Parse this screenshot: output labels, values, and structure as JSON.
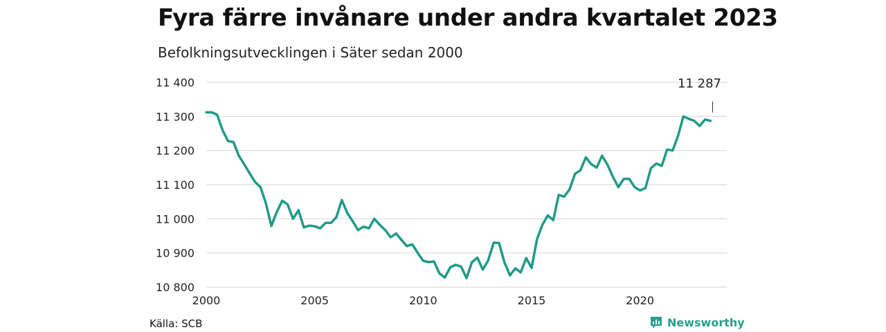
{
  "header": {
    "title": "Fyra färre invånare under andra kvartalet 2023",
    "subtitle": "Befolkningsutvecklingen i Säter sedan 2000"
  },
  "footer": {
    "source": "Källa: SCB",
    "brand": "Newsworthy",
    "brand_icon": "bar-chart-icon",
    "brand_color": "#2a9d8f"
  },
  "chart_data": {
    "type": "line",
    "title": "Fyra färre invånare under andra kvartalet 2023",
    "subtitle": "Befolkningsutvecklingen i Säter sedan 2000",
    "xlabel": "",
    "ylabel": "",
    "xlim": [
      2000,
      2024
    ],
    "ylim": [
      10800,
      11400
    ],
    "grid": true,
    "line_color": "#1f9a88",
    "x_ticks": [
      {
        "value": 2000,
        "label": "2000"
      },
      {
        "value": 2005,
        "label": "2005"
      },
      {
        "value": 2010,
        "label": "2010"
      },
      {
        "value": 2015,
        "label": "2015"
      },
      {
        "value": 2020,
        "label": "2020"
      }
    ],
    "y_ticks": [
      {
        "value": 10800,
        "label": "10 800"
      },
      {
        "value": 10900,
        "label": "10 900"
      },
      {
        "value": 11000,
        "label": "11 000"
      },
      {
        "value": 11100,
        "label": "11 100"
      },
      {
        "value": 11200,
        "label": "11 200"
      },
      {
        "value": 11300,
        "label": "11 300"
      },
      {
        "value": 11400,
        "label": "11 400"
      }
    ],
    "end_label": "11 287",
    "series": [
      {
        "points": [
          [
            2000.0,
            11312
          ],
          [
            2000.25,
            11312
          ],
          [
            2000.5,
            11305
          ],
          [
            2000.75,
            11260
          ],
          [
            2001.0,
            11228
          ],
          [
            2001.25,
            11225
          ],
          [
            2001.5,
            11185
          ],
          [
            2001.75,
            11160
          ],
          [
            2002.0,
            11133
          ],
          [
            2002.25,
            11108
          ],
          [
            2002.5,
            11093
          ],
          [
            2002.75,
            11045
          ],
          [
            2003.0,
            10979
          ],
          [
            2003.25,
            11020
          ],
          [
            2003.5,
            11053
          ],
          [
            2003.75,
            11042
          ],
          [
            2004.0,
            11000
          ],
          [
            2004.25,
            11025
          ],
          [
            2004.5,
            10975
          ],
          [
            2004.75,
            10980
          ],
          [
            2005.0,
            10978
          ],
          [
            2005.25,
            10972
          ],
          [
            2005.5,
            10988
          ],
          [
            2005.75,
            10988
          ],
          [
            2006.0,
            11005
          ],
          [
            2006.25,
            11055
          ],
          [
            2006.5,
            11017
          ],
          [
            2006.75,
            10993
          ],
          [
            2007.0,
            10967
          ],
          [
            2007.25,
            10977
          ],
          [
            2007.5,
            10972
          ],
          [
            2007.75,
            11000
          ],
          [
            2008.0,
            10982
          ],
          [
            2008.25,
            10967
          ],
          [
            2008.5,
            10946
          ],
          [
            2008.75,
            10957
          ],
          [
            2009.0,
            10938
          ],
          [
            2009.25,
            10920
          ],
          [
            2009.5,
            10925
          ],
          [
            2009.75,
            10900
          ],
          [
            2010.0,
            10877
          ],
          [
            2010.25,
            10873
          ],
          [
            2010.5,
            10875
          ],
          [
            2010.75,
            10840
          ],
          [
            2011.0,
            10828
          ],
          [
            2011.25,
            10858
          ],
          [
            2011.5,
            10865
          ],
          [
            2011.75,
            10860
          ],
          [
            2012.0,
            10826
          ],
          [
            2012.25,
            10873
          ],
          [
            2012.5,
            10886
          ],
          [
            2012.75,
            10851
          ],
          [
            2013.0,
            10878
          ],
          [
            2013.25,
            10930
          ],
          [
            2013.5,
            10929
          ],
          [
            2013.75,
            10872
          ],
          [
            2014.0,
            10834
          ],
          [
            2014.25,
            10855
          ],
          [
            2014.5,
            10843
          ],
          [
            2014.75,
            10885
          ],
          [
            2015.0,
            10856
          ],
          [
            2015.25,
            10940
          ],
          [
            2015.5,
            10983
          ],
          [
            2015.75,
            11010
          ],
          [
            2016.0,
            10996
          ],
          [
            2016.25,
            11070
          ],
          [
            2016.5,
            11065
          ],
          [
            2016.75,
            11086
          ],
          [
            2017.0,
            11132
          ],
          [
            2017.25,
            11142
          ],
          [
            2017.5,
            11180
          ],
          [
            2017.75,
            11160
          ],
          [
            2018.0,
            11150
          ],
          [
            2018.25,
            11185
          ],
          [
            2018.5,
            11158
          ],
          [
            2018.75,
            11123
          ],
          [
            2019.0,
            11093
          ],
          [
            2019.25,
            11117
          ],
          [
            2019.5,
            11117
          ],
          [
            2019.75,
            11093
          ],
          [
            2020.0,
            11083
          ],
          [
            2020.25,
            11090
          ],
          [
            2020.5,
            11148
          ],
          [
            2020.75,
            11162
          ],
          [
            2021.0,
            11155
          ],
          [
            2021.25,
            11203
          ],
          [
            2021.5,
            11200
          ],
          [
            2021.75,
            11243
          ],
          [
            2022.0,
            11300
          ],
          [
            2022.25,
            11293
          ],
          [
            2022.5,
            11287
          ],
          [
            2022.75,
            11272
          ],
          [
            2023.0,
            11291
          ],
          [
            2023.25,
            11287
          ]
        ]
      }
    ]
  }
}
